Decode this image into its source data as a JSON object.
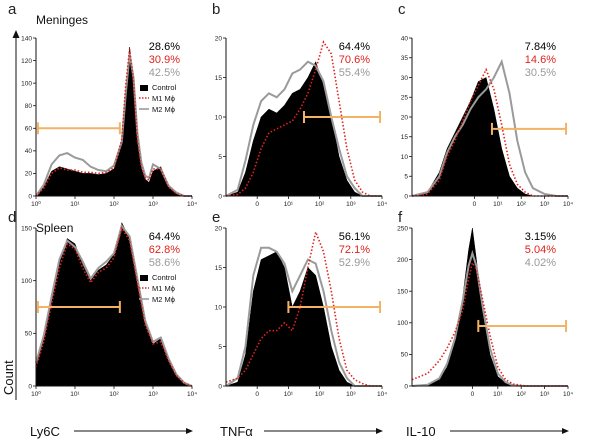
{
  "chart_data": {
    "type": "histogram",
    "y_axis_label": "Count",
    "colors": {
      "control": "#000000",
      "m1": "#e0231b",
      "m2": "#9a9a9a",
      "gate": "#f2b366"
    },
    "legend": [
      {
        "key": "control",
        "label": "Control"
      },
      {
        "key": "m1",
        "label": "M1 Mϕ"
      },
      {
        "key": "m2",
        "label": "M2 Mϕ"
      }
    ],
    "rows": [
      {
        "region": "Meninges"
      },
      {
        "region": "Spleen"
      }
    ],
    "panels": [
      {
        "letter": "a",
        "marker": "Ly6C",
        "xlabel": "Ly6C",
        "has_legend": true,
        "ylim": [
          0,
          140
        ],
        "yticks": [
          0,
          20,
          40,
          60,
          80,
          100,
          120,
          140
        ],
        "xticks": [
          "10⁰",
          "10¹",
          "10²",
          "10³",
          "10⁴"
        ],
        "xtick_values": [
          0,
          1,
          2,
          3,
          4
        ],
        "xlim": [
          0,
          4
        ],
        "gate": {
          "start": 0.05,
          "end": 2.15,
          "y": 60
        },
        "percents": {
          "control": "28.6%",
          "m1": "30.9%",
          "m2": "42.5%"
        },
        "series": {
          "x": [
            0,
            0.2,
            0.4,
            0.6,
            0.8,
            1.0,
            1.2,
            1.4,
            1.6,
            1.8,
            2.0,
            2.2,
            2.3,
            2.4,
            2.5,
            2.6,
            2.7,
            2.8,
            2.9,
            3.0,
            3.2,
            3.4,
            3.6,
            3.8,
            4.0
          ],
          "control": [
            0,
            8,
            22,
            26,
            24,
            22,
            20,
            20,
            19,
            20,
            24,
            46,
            92,
            132,
            100,
            48,
            25,
            15,
            12,
            22,
            26,
            8,
            2,
            0,
            0
          ],
          "m1": [
            0,
            7,
            20,
            25,
            23,
            23,
            21,
            21,
            20,
            21,
            25,
            50,
            98,
            130,
            102,
            50,
            26,
            16,
            14,
            24,
            24,
            8,
            2,
            0,
            0
          ],
          "m2": [
            0,
            10,
            28,
            36,
            38,
            34,
            32,
            26,
            23,
            22,
            27,
            48,
            90,
            126,
            105,
            56,
            30,
            18,
            16,
            28,
            24,
            9,
            3,
            0,
            0
          ]
        }
      },
      {
        "letter": "b",
        "marker": "TNFα",
        "xlabel": "TNFα",
        "has_legend": false,
        "ylim": [
          0,
          20
        ],
        "yticks": [
          0,
          5,
          10,
          15,
          20
        ],
        "xticks": [
          "0",
          "10¹",
          "10²",
          "10³",
          "10⁴"
        ],
        "xtick_values": [
          0.8,
          1.6,
          2.4,
          3.2,
          4.0
        ],
        "xlim": [
          0,
          4
        ],
        "gate": {
          "start": 2.0,
          "end": 3.95,
          "y": 10
        },
        "percents": {
          "control": "64.4%",
          "m1": "70.6%",
          "m2": "55.4%"
        },
        "series": {
          "x": [
            0,
            0.3,
            0.5,
            0.7,
            0.9,
            1.1,
            1.3,
            1.5,
            1.7,
            1.9,
            2.1,
            2.3,
            2.5,
            2.7,
            2.9,
            3.1,
            3.3,
            3.5,
            3.7,
            4.0
          ],
          "control": [
            0,
            0.5,
            3,
            7,
            10,
            11,
            10.5,
            11.5,
            13,
            13.5,
            15,
            17,
            14,
            10,
            5,
            2,
            0.5,
            0,
            0,
            0
          ],
          "m1": [
            0,
            0.2,
            1,
            3,
            6,
            8,
            8.5,
            9,
            9.5,
            11,
            13,
            16,
            19.5,
            18,
            12,
            6,
            2,
            0.5,
            0,
            0
          ],
          "m2": [
            0,
            0.8,
            4.5,
            9,
            12,
            13,
            12.5,
            13.5,
            15.5,
            16,
            17,
            16.5,
            14.5,
            10,
            6,
            2.5,
            1,
            0,
            0,
            0
          ]
        }
      },
      {
        "letter": "c",
        "marker": "IL-10",
        "xlabel": "IL-10",
        "has_legend": false,
        "ylim": [
          0,
          40
        ],
        "yticks": [
          0,
          5,
          10,
          15,
          20,
          25,
          30,
          35,
          40
        ],
        "xticks": [
          "0",
          "10¹",
          "10²",
          "10³",
          "10⁴"
        ],
        "xtick_values": [
          1.6,
          2.2,
          2.8,
          3.4,
          4.0
        ],
        "xlim": [
          0,
          4
        ],
        "gate": {
          "start": 2.05,
          "end": 3.95,
          "y": 17
        },
        "percents": {
          "control": "7.84%",
          "m1": "14.6%",
          "m2": "30.5%"
        },
        "series": {
          "x": [
            0,
            0.4,
            0.7,
            0.9,
            1.1,
            1.3,
            1.5,
            1.7,
            1.9,
            2.1,
            2.3,
            2.5,
            2.7,
            2.9,
            3.1,
            3.4,
            3.7,
            4.0
          ],
          "control": [
            0,
            1,
            6,
            12,
            16,
            20,
            24,
            29,
            30,
            22,
            12,
            5,
            2,
            0.5,
            0,
            0,
            0,
            0
          ],
          "m1": [
            0,
            0.5,
            4,
            10,
            14,
            19,
            24,
            28,
            32,
            27,
            18,
            8,
            3,
            1,
            0,
            0,
            0,
            0
          ],
          "m2": [
            0,
            1,
            5,
            11,
            15,
            18,
            22,
            25,
            27,
            30,
            34,
            26,
            14,
            6,
            2,
            0.5,
            0,
            0
          ]
        }
      },
      {
        "letter": "d",
        "marker": "Ly6C",
        "xlabel": "Ly6C",
        "has_legend": true,
        "ylim": [
          0,
          150
        ],
        "yticks": [
          0,
          50,
          100,
          150
        ],
        "xticks": [
          "10⁰",
          "10¹",
          "10²",
          "10³",
          "10⁴"
        ],
        "xtick_values": [
          0,
          1,
          2,
          3,
          4
        ],
        "xlim": [
          0,
          4
        ],
        "gate": {
          "start": 0.05,
          "end": 2.15,
          "y": 75
        },
        "percents": {
          "control": "64.4%",
          "m1": "62.8%",
          "m2": "58.6%"
        },
        "series": {
          "x": [
            0,
            0.2,
            0.4,
            0.6,
            0.8,
            1.0,
            1.2,
            1.4,
            1.6,
            1.8,
            2.0,
            2.2,
            2.4,
            2.6,
            2.8,
            3.0,
            3.2,
            3.4,
            3.6,
            3.8,
            4.0
          ],
          "control": [
            20,
            45,
            80,
            118,
            140,
            135,
            115,
            100,
            110,
            115,
            125,
            155,
            140,
            100,
            60,
            40,
            45,
            25,
            10,
            3,
            0
          ],
          "m1": [
            18,
            42,
            78,
            112,
            135,
            130,
            112,
            98,
            108,
            112,
            122,
            150,
            138,
            98,
            58,
            40,
            42,
            24,
            10,
            3,
            0
          ],
          "m2": [
            22,
            48,
            85,
            120,
            138,
            132,
            118,
            102,
            112,
            118,
            126,
            152,
            142,
            102,
            62,
            42,
            46,
            26,
            11,
            3,
            0
          ]
        }
      },
      {
        "letter": "e",
        "marker": "TNFα",
        "xlabel": "TNFα",
        "has_legend": false,
        "ylim": [
          0,
          20
        ],
        "yticks": [
          0,
          5,
          10,
          15,
          20
        ],
        "xticks": [
          "0",
          "10¹",
          "10²",
          "10³",
          "10⁴"
        ],
        "xtick_values": [
          0.8,
          1.6,
          2.4,
          3.2,
          4.0
        ],
        "xlim": [
          0,
          4
        ],
        "gate": {
          "start": 1.6,
          "end": 3.95,
          "y": 10
        },
        "percents": {
          "control": "56.1%",
          "m1": "72.1%",
          "m2": "52.9%"
        },
        "series": {
          "x": [
            0,
            0.3,
            0.5,
            0.7,
            0.9,
            1.1,
            1.3,
            1.5,
            1.7,
            1.9,
            2.1,
            2.3,
            2.5,
            2.7,
            2.9,
            3.1,
            3.3,
            3.5,
            3.7,
            4.0
          ],
          "control": [
            0,
            0.5,
            4,
            12,
            16,
            16.5,
            17,
            15,
            10,
            12,
            15,
            14,
            10,
            5,
            2,
            0.5,
            0,
            0,
            0,
            0
          ],
          "m1": [
            0.5,
            1,
            2,
            4,
            6,
            7,
            7,
            8,
            7,
            10,
            15,
            19.5,
            17,
            12,
            6,
            2,
            0.8,
            0.3,
            0,
            0
          ],
          "m2": [
            0,
            1,
            5,
            14,
            17.5,
            17.5,
            17,
            15.5,
            12,
            14,
            16,
            15.5,
            12,
            7,
            3,
            1,
            0,
            0,
            0,
            0
          ]
        }
      },
      {
        "letter": "f",
        "marker": "IL-10",
        "xlabel": "IL-10",
        "has_legend": false,
        "ylim": [
          0,
          250
        ],
        "yticks": [
          0,
          50,
          100,
          150,
          200,
          250
        ],
        "xticks": [
          "0",
          "10¹",
          "10²",
          "10³",
          "10⁴"
        ],
        "xtick_values": [
          1.55,
          2.2,
          2.8,
          3.4,
          4.0
        ],
        "xlim": [
          0,
          4
        ],
        "gate": {
          "start": 1.7,
          "end": 3.95,
          "y": 95
        },
        "percents": {
          "control": "3.15%",
          "m1": "5.04%",
          "m2": "4.02%"
        },
        "series": {
          "x": [
            0,
            0.4,
            0.7,
            0.9,
            1.1,
            1.3,
            1.45,
            1.55,
            1.65,
            1.8,
            2.0,
            2.2,
            2.4,
            2.6,
            2.9,
            3.2,
            4.0
          ],
          "control": [
            0,
            1,
            10,
            30,
            70,
            140,
            215,
            250,
            200,
            120,
            50,
            15,
            5,
            1,
            0,
            0,
            0
          ],
          "m1": [
            10,
            20,
            40,
            60,
            85,
            120,
            170,
            195,
            185,
            140,
            80,
            30,
            10,
            3,
            0,
            0,
            0
          ],
          "m2": [
            0,
            2,
            12,
            35,
            75,
            135,
            190,
            210,
            190,
            130,
            60,
            20,
            6,
            1,
            0,
            0,
            0
          ]
        }
      }
    ]
  }
}
